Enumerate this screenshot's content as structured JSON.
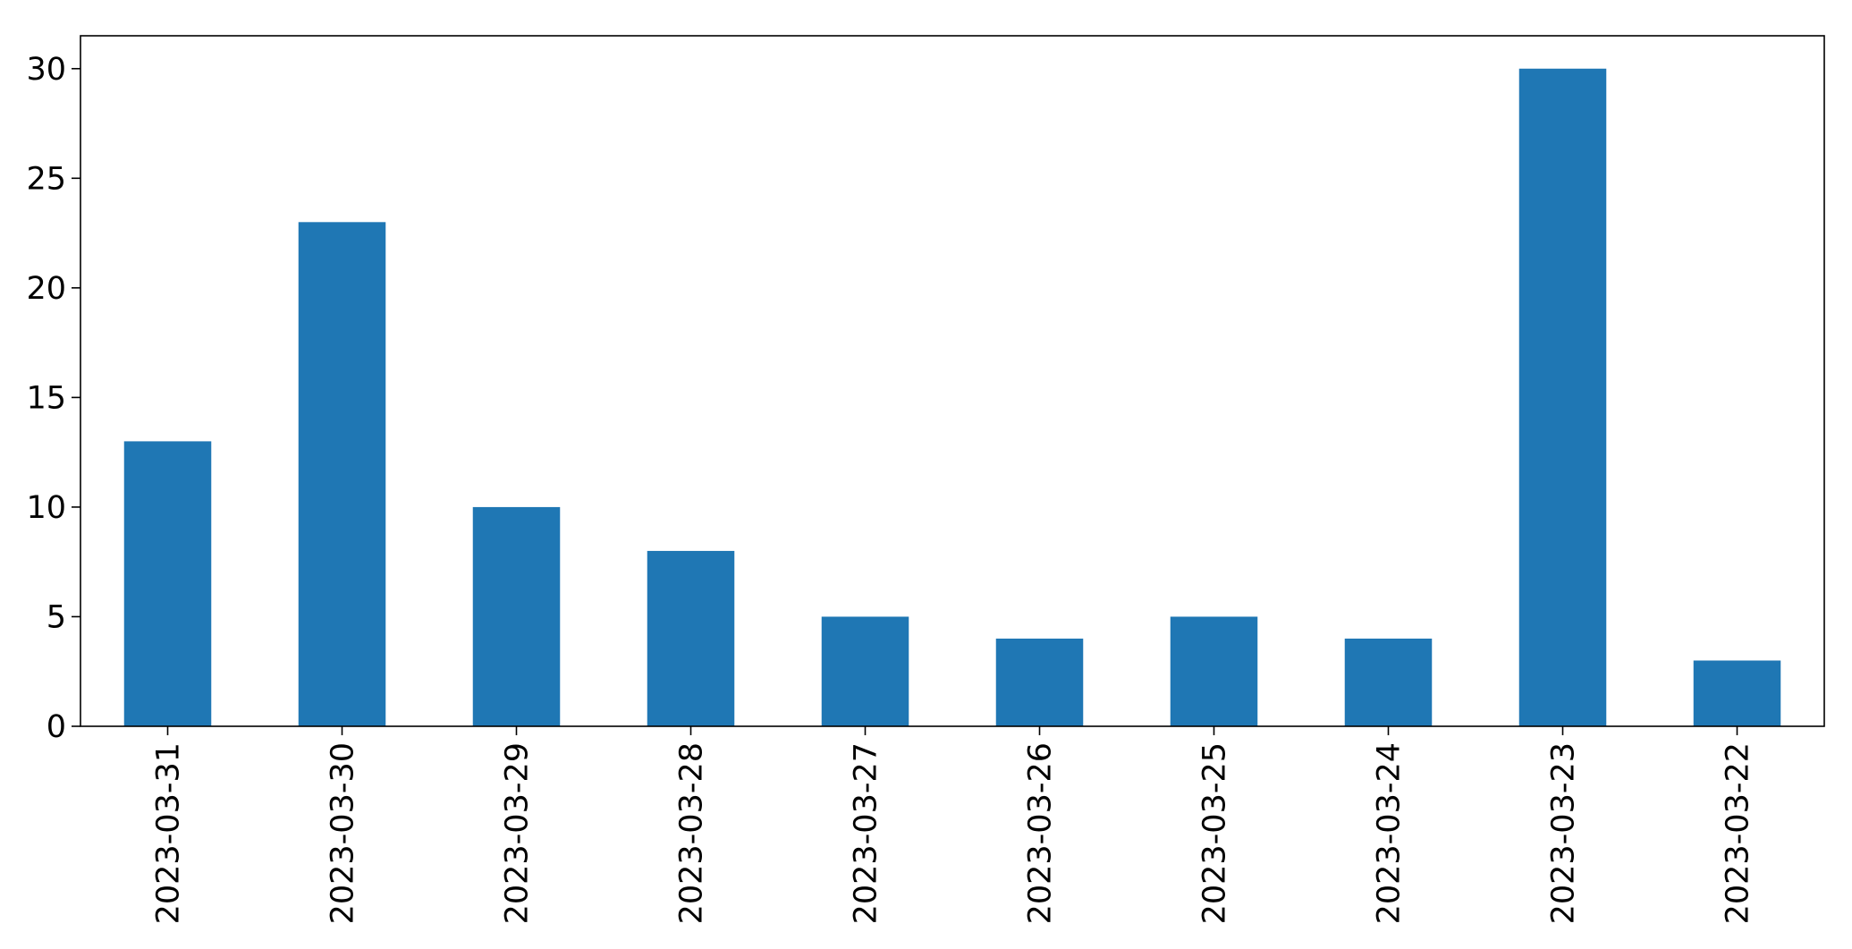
{
  "chart_data": {
    "type": "bar",
    "title": "",
    "xlabel": "",
    "ylabel": "",
    "categories": [
      "2023-03-31",
      "2023-03-30",
      "2023-03-29",
      "2023-03-28",
      "2023-03-27",
      "2023-03-26",
      "2023-03-25",
      "2023-03-24",
      "2023-03-23",
      "2023-03-22"
    ],
    "values": [
      13,
      23,
      10,
      8,
      5,
      4,
      5,
      4,
      30,
      3
    ],
    "ylim": [
      0,
      31.5
    ],
    "yticks": [
      0,
      5,
      10,
      15,
      20,
      25,
      30
    ],
    "grid": false,
    "legend": "none",
    "bar_color": "#1f77b4"
  }
}
